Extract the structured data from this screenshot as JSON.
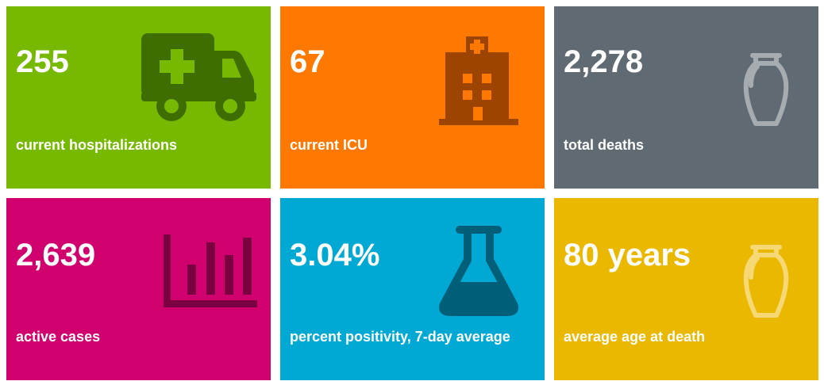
{
  "tiles": [
    {
      "value": "255",
      "label": "current hospitalizations",
      "color": "#76b900",
      "icon": "ambulance-icon"
    },
    {
      "value": "67",
      "label": "current ICU",
      "color": "#ff7800",
      "icon": "hospital-building-icon"
    },
    {
      "value": "2,278",
      "label": "total deaths",
      "color": "#606a73",
      "icon": "urn-icon"
    },
    {
      "value": "2,639",
      "label": "active cases",
      "color": "#d0006f",
      "icon": "bar-chart-icon"
    },
    {
      "value": "3.04%",
      "label": "percent positivity, 7-day average",
      "color": "#00a9d4",
      "icon": "flask-icon"
    },
    {
      "value": "80 years",
      "label": "average age at death",
      "color": "#ebb800",
      "icon": "urn-icon"
    }
  ]
}
